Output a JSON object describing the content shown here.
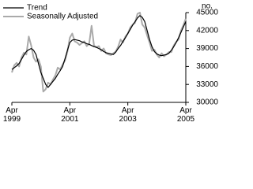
{
  "chart_data": {
    "type": "line",
    "y_label": "no.",
    "categories": [
      "Apr 1999",
      null,
      null,
      null,
      null,
      null,
      null,
      null,
      null,
      null,
      null,
      null,
      null,
      null,
      null,
      null,
      null,
      null,
      null,
      null,
      null,
      null,
      null,
      null,
      "Apr 2001",
      null,
      null,
      null,
      null,
      null,
      null,
      null,
      null,
      null,
      null,
      null,
      null,
      null,
      null,
      null,
      null,
      null,
      null,
      null,
      null,
      null,
      null,
      null,
      "Apr 2003",
      null,
      null,
      null,
      null,
      null,
      null,
      null,
      null,
      null,
      null,
      null,
      null,
      null,
      null,
      null,
      null,
      null,
      null,
      null,
      null,
      null,
      null,
      null,
      "Apr 2005"
    ],
    "series": [
      {
        "name": "Trend",
        "color": "#000000",
        "values": [
          35500,
          35800,
          36100,
          36500,
          37200,
          37900,
          38500,
          38800,
          39000,
          38700,
          38000,
          36500,
          35000,
          34000,
          33000,
          32500,
          33000,
          33500,
          34000,
          34700,
          35300,
          36000,
          37300,
          38700,
          40000,
          40400,
          40500,
          40400,
          40300,
          40100,
          40000,
          39800,
          39700,
          39500,
          39300,
          39200,
          39000,
          38800,
          38500,
          38300,
          38200,
          38100,
          38000,
          38400,
          39000,
          39500,
          40200,
          40800,
          41500,
          42200,
          42900,
          43500,
          44100,
          44500,
          44200,
          43500,
          42000,
          40500,
          39300,
          38500,
          38100,
          37900,
          37800,
          37900,
          38000,
          38200,
          38700,
          39300,
          40000,
          40800,
          41700,
          42600,
          43500
        ]
      },
      {
        "name": "Seasonally Adjusted",
        "color": "#aaaaaa",
        "values": [
          35000,
          36200,
          36600,
          36000,
          37500,
          38300,
          38000,
          41000,
          39500,
          37500,
          36800,
          37200,
          36000,
          31800,
          32200,
          33300,
          33000,
          33800,
          34500,
          35800,
          35500,
          36300,
          37000,
          38500,
          40800,
          41500,
          40200,
          40000,
          39600,
          39900,
          40200,
          39400,
          39800,
          42800,
          39500,
          39200,
          39400,
          38600,
          39000,
          38200,
          38000,
          37900,
          38200,
          38500,
          39300,
          40500,
          40000,
          41000,
          41500,
          42500,
          43000,
          43300,
          44800,
          45000,
          43000,
          42500,
          41200,
          40000,
          38600,
          38800,
          38000,
          37500,
          38200,
          37700,
          38000,
          38400,
          38400,
          39500,
          40100,
          40500,
          42000,
          42900,
          44000
        ]
      }
    ],
    "ylim": [
      30000,
      45000
    ],
    "yticks": [
      30000,
      33000,
      36000,
      39000,
      42000,
      45000
    ]
  }
}
